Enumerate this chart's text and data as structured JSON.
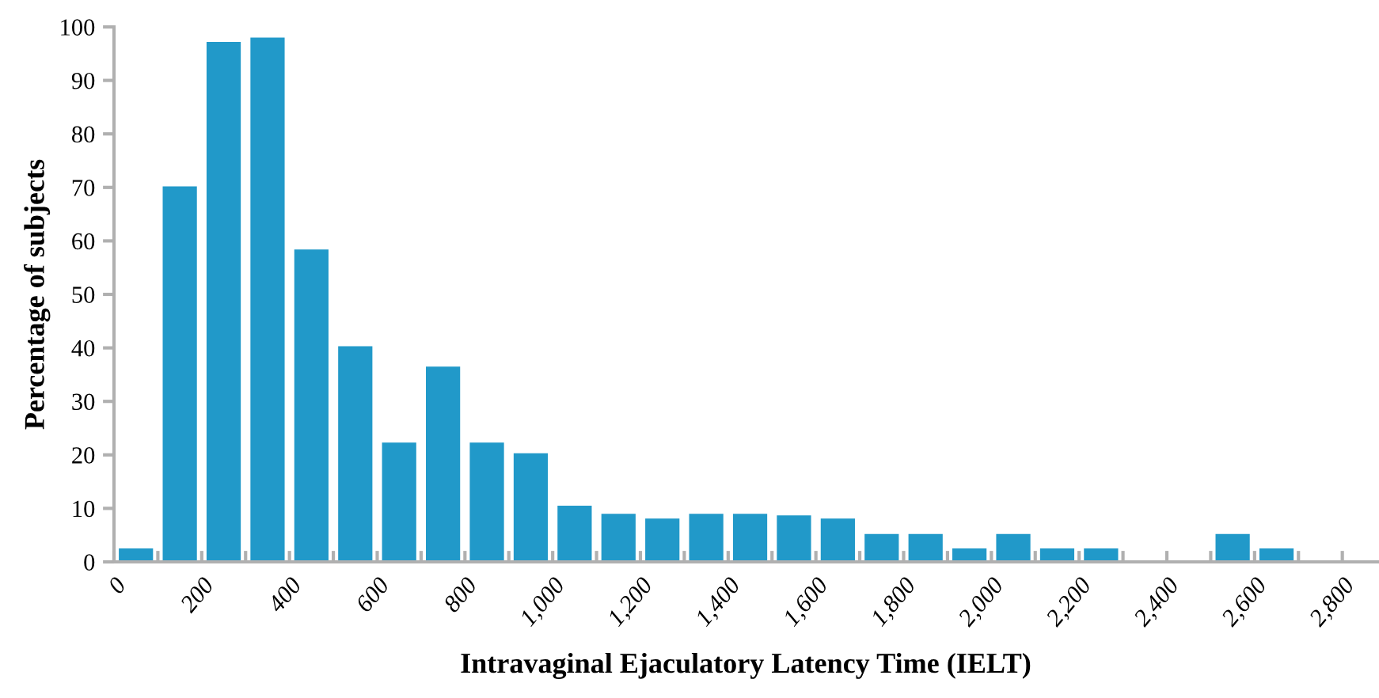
{
  "chart_data": {
    "type": "histogram",
    "xlabel": "Intravaginal Ejaculatory Latency Time (IELT)",
    "ylabel": "Percentage of subjects",
    "color": "#2199c9",
    "bins": [
      0,
      100,
      200,
      300,
      400,
      500,
      600,
      700,
      800,
      900,
      1000,
      1100,
      1200,
      1300,
      1400,
      1500,
      1600,
      1700,
      1800,
      1900,
      2000,
      2100,
      2200,
      2300,
      2400,
      2500,
      2600,
      2700,
      2800
    ],
    "values": [
      2.5,
      70.2,
      97.2,
      98,
      58.4,
      40.3,
      22.3,
      36.5,
      22.3,
      20.3,
      10.5,
      9,
      8.1,
      9,
      9,
      8.7,
      8.1,
      5.2,
      5.2,
      2.5,
      5.2,
      2.5,
      2.5,
      0,
      0,
      5.2,
      2.5,
      0
    ],
    "xlim": [
      0,
      2880
    ],
    "xticks": [
      {
        "value": 0,
        "label": "0"
      },
      {
        "value": 100,
        "label": null
      },
      {
        "value": 200,
        "label": "200"
      },
      {
        "value": 300,
        "label": null
      },
      {
        "value": 400,
        "label": "400"
      },
      {
        "value": 500,
        "label": null
      },
      {
        "value": 600,
        "label": "600"
      },
      {
        "value": 700,
        "label": null
      },
      {
        "value": 800,
        "label": "800"
      },
      {
        "value": 900,
        "label": null
      },
      {
        "value": 1000,
        "label": "1,000"
      },
      {
        "value": 1100,
        "label": null
      },
      {
        "value": 1200,
        "label": "1,200"
      },
      {
        "value": 1300,
        "label": null
      },
      {
        "value": 1400,
        "label": "1,400"
      },
      {
        "value": 1500,
        "label": null
      },
      {
        "value": 1600,
        "label": "1,600"
      },
      {
        "value": 1700,
        "label": null
      },
      {
        "value": 1800,
        "label": "1,800"
      },
      {
        "value": 1900,
        "label": null
      },
      {
        "value": 2000,
        "label": "2,000"
      },
      {
        "value": 2100,
        "label": null
      },
      {
        "value": 2200,
        "label": "2,200"
      },
      {
        "value": 2300,
        "label": null
      },
      {
        "value": 2400,
        "label": "2,400"
      },
      {
        "value": 2500,
        "label": null
      },
      {
        "value": 2600,
        "label": "2,600"
      },
      {
        "value": 2700,
        "label": null
      },
      {
        "value": 2800,
        "label": "2,800"
      }
    ],
    "ylim": [
      0,
      100
    ],
    "yticks": [
      0,
      10,
      20,
      30,
      40,
      50,
      60,
      70,
      80,
      90,
      100
    ],
    "grid": false,
    "legend": false
  }
}
